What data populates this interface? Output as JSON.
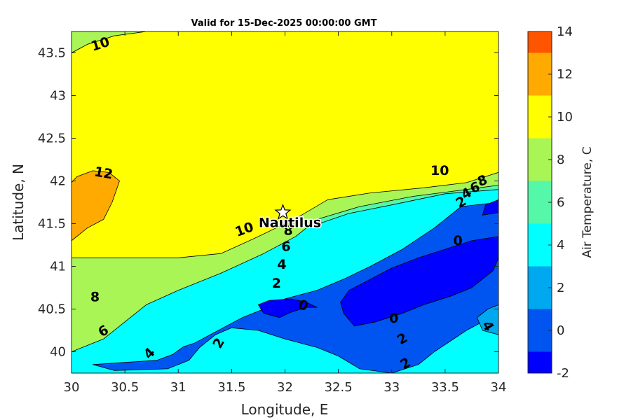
{
  "chart_data": {
    "type": "contour-map",
    "title": "Valid for 15-Dec-2025 00:00:00 GMT",
    "xlabel": "Longitude, E",
    "ylabel": "Latitude, N",
    "xlim": [
      30,
      34
    ],
    "ylim": [
      39.75,
      43.75
    ],
    "xticks": [
      30,
      30.5,
      31,
      31.5,
      32,
      32.5,
      33,
      33.5,
      34
    ],
    "xtick_labels": [
      "30",
      "30.5",
      "31",
      "31.5",
      "32",
      "32.5",
      "33",
      "33.5",
      "34"
    ],
    "yticks": [
      40,
      40.5,
      41,
      41.5,
      42,
      42.5,
      43,
      43.5
    ],
    "ytick_labels": [
      "40",
      "40.5",
      "41",
      "41.5",
      "42",
      "42.5",
      "43",
      "43.5"
    ],
    "colorbar": {
      "label": "Air Temperature, C",
      "range": [
        -2,
        14
      ],
      "ticks": [
        -2,
        0,
        2,
        4,
        6,
        8,
        10,
        12,
        14
      ],
      "tick_labels": [
        "-2",
        "0",
        "2",
        "4",
        "6",
        "8",
        "10",
        "12",
        "14"
      ],
      "levels": [
        {
          "min": -2,
          "max": -1,
          "color": "#0000ff"
        },
        {
          "min": -1,
          "max": 1,
          "color": "#0055f0"
        },
        {
          "min": 1,
          "max": 3,
          "color": "#00a8f0"
        },
        {
          "min": 3,
          "max": 5,
          "color": "#00ffff"
        },
        {
          "min": 5,
          "max": 7,
          "color": "#55f7a8"
        },
        {
          "min": 7,
          "max": 9,
          "color": "#a8f555"
        },
        {
          "min": 9,
          "max": 11,
          "color": "#ffff00"
        },
        {
          "min": 11,
          "max": 13,
          "color": "#ffaa00"
        },
        {
          "min": 13,
          "max": 14,
          "color": "#ff5500"
        }
      ]
    },
    "regions": [
      {
        "level": 2,
        "color": "#00a8f0",
        "points": [
          [
            30,
            39.75
          ],
          [
            34,
            39.75
          ],
          [
            34,
            41.92
          ],
          [
            33.5,
            41.85
          ],
          [
            33,
            41.7
          ],
          [
            32.6,
            41.63
          ],
          [
            32.2,
            41.52
          ],
          [
            31.9,
            41.32
          ],
          [
            31.6,
            41.15
          ],
          [
            31.3,
            41.0
          ],
          [
            31,
            40.85
          ],
          [
            30.5,
            40.58
          ],
          [
            30,
            40.3
          ]
        ]
      },
      {
        "level": 3,
        "color": "#00ffff",
        "points": [
          [
            30,
            39.75
          ],
          [
            34,
            39.75
          ],
          [
            34,
            41.95
          ],
          [
            33.5,
            41.88
          ],
          [
            33,
            41.75
          ],
          [
            32.6,
            41.68
          ],
          [
            32.2,
            41.57
          ],
          [
            31.95,
            41.38
          ],
          [
            31.7,
            41.22
          ],
          [
            31.4,
            41.1
          ],
          [
            31.1,
            40.98
          ],
          [
            30.7,
            40.78
          ],
          [
            30.3,
            40.55
          ],
          [
            30,
            40.45
          ]
        ]
      },
      {
        "level": 4,
        "color": "#55f7a8",
        "points": [
          [
            30,
            40.12
          ],
          [
            30.4,
            40.3
          ],
          [
            30.6,
            40.5
          ],
          [
            30.8,
            40.65
          ],
          [
            31.2,
            40.88
          ],
          [
            31.6,
            41.08
          ],
          [
            31.95,
            41.25
          ],
          [
            32.2,
            41.45
          ],
          [
            32.6,
            41.62
          ],
          [
            33,
            41.72
          ],
          [
            33.5,
            41.85
          ],
          [
            34,
            41.9
          ],
          [
            34,
            43.75
          ],
          [
            30,
            43.75
          ]
        ]
      },
      {
        "level": 5,
        "color": "#a8f555",
        "points": [
          [
            30,
            40.0
          ],
          [
            30.3,
            40.15
          ],
          [
            30.5,
            40.35
          ],
          [
            30.7,
            40.55
          ],
          [
            31,
            40.72
          ],
          [
            31.4,
            40.92
          ],
          [
            31.8,
            41.15
          ],
          [
            32.1,
            41.35
          ],
          [
            32.3,
            41.55
          ],
          [
            32.7,
            41.7
          ],
          [
            33.2,
            41.82
          ],
          [
            33.7,
            41.9
          ],
          [
            34,
            41.95
          ],
          [
            34,
            43.75
          ],
          [
            30,
            43.75
          ]
        ]
      },
      {
        "level": 6,
        "color": "#ffff00",
        "points": [
          [
            30,
            41.1
          ],
          [
            30.5,
            41.1
          ],
          [
            31,
            41.1
          ],
          [
            31.4,
            41.15
          ],
          [
            31.7,
            41.32
          ],
          [
            32.1,
            41.56
          ],
          [
            32.4,
            41.78
          ],
          [
            32.8,
            41.86
          ],
          [
            33.3,
            41.92
          ],
          [
            33.7,
            41.98
          ],
          [
            34,
            42.1
          ],
          [
            34,
            43.75
          ],
          [
            30.9,
            43.75
          ],
          [
            30.7,
            43.75
          ],
          [
            30.4,
            43.7
          ],
          [
            30.15,
            43.6
          ],
          [
            30,
            43.5
          ]
        ]
      },
      {
        "level": 5,
        "color": "#a8f555",
        "points": [
          [
            30,
            43.75
          ],
          [
            30.9,
            43.75
          ],
          [
            30.7,
            43.75
          ],
          [
            30.4,
            43.7
          ],
          [
            30.15,
            43.6
          ],
          [
            30,
            43.5
          ]
        ]
      },
      {
        "level": 7,
        "color": "#ffaa00",
        "points": [
          [
            30,
            41.3
          ],
          [
            30.15,
            41.45
          ],
          [
            30.3,
            41.55
          ],
          [
            30.38,
            41.75
          ],
          [
            30.45,
            42.0
          ],
          [
            30.35,
            42.1
          ],
          [
            30.2,
            42.12
          ],
          [
            30.05,
            42.05
          ],
          [
            30,
            41.98
          ]
        ]
      },
      {
        "level": 1,
        "color": "#0055f0",
        "points": [
          [
            30.2,
            39.85
          ],
          [
            30.8,
            39.9
          ],
          [
            30.95,
            39.97
          ],
          [
            31.05,
            40.06
          ],
          [
            31.15,
            40.1
          ],
          [
            31.3,
            40.2
          ],
          [
            31.45,
            40.3
          ],
          [
            31.6,
            40.4
          ],
          [
            31.8,
            40.5
          ],
          [
            32,
            40.62
          ],
          [
            32.3,
            40.72
          ],
          [
            32.55,
            40.85
          ],
          [
            32.8,
            41.0
          ],
          [
            33.1,
            41.2
          ],
          [
            33.4,
            41.45
          ],
          [
            33.65,
            41.7
          ],
          [
            34,
            41.75
          ],
          [
            34,
            40.45
          ],
          [
            33.7,
            40.25
          ],
          [
            33.4,
            40.0
          ],
          [
            33.25,
            39.85
          ],
          [
            33.0,
            39.75
          ],
          [
            32.7,
            39.8
          ],
          [
            32.5,
            39.95
          ],
          [
            32.3,
            40.05
          ],
          [
            32.0,
            40.15
          ],
          [
            31.75,
            40.25
          ],
          [
            31.5,
            40.28
          ],
          [
            31.35,
            40.2
          ],
          [
            31.2,
            40.05
          ],
          [
            31.1,
            39.9
          ],
          [
            30.9,
            39.8
          ],
          [
            30.4,
            39.78
          ],
          [
            30.2,
            39.85
          ]
        ]
      },
      {
        "level": 0,
        "color": "#0000ff",
        "points": [
          [
            31.95,
            40.4
          ],
          [
            32.05,
            40.46
          ],
          [
            32.2,
            40.52
          ],
          [
            32.3,
            40.52
          ],
          [
            32.2,
            40.58
          ],
          [
            32.05,
            40.62
          ],
          [
            31.85,
            40.6
          ],
          [
            31.75,
            40.55
          ],
          [
            31.8,
            40.45
          ]
        ]
      },
      {
        "level": 0,
        "color": "#0000ff",
        "points": [
          [
            32.55,
            40.45
          ],
          [
            32.65,
            40.3
          ],
          [
            32.85,
            40.35
          ],
          [
            33.1,
            40.45
          ],
          [
            33.3,
            40.55
          ],
          [
            33.55,
            40.65
          ],
          [
            33.75,
            40.75
          ],
          [
            33.95,
            40.95
          ],
          [
            34,
            41.1
          ],
          [
            34,
            41.35
          ],
          [
            33.75,
            41.3
          ],
          [
            33.5,
            41.2
          ],
          [
            33.25,
            41.1
          ],
          [
            33.0,
            40.98
          ],
          [
            32.8,
            40.85
          ],
          [
            32.6,
            40.72
          ],
          [
            32.52,
            40.58
          ]
        ]
      },
      {
        "level": 0,
        "color": "#0000ff",
        "points": [
          [
            33.85,
            41.6
          ],
          [
            34,
            41.63
          ],
          [
            34,
            41.78
          ],
          [
            33.88,
            41.72
          ]
        ]
      },
      {
        "level": 2,
        "color": "#00a8f0",
        "points": [
          [
            33.85,
            40.25
          ],
          [
            34,
            40.2
          ],
          [
            34,
            40.55
          ],
          [
            33.9,
            40.5
          ],
          [
            33.8,
            40.4
          ]
        ]
      }
    ],
    "contour_labels": [
      {
        "text": "10",
        "x": 30.27,
        "y": 43.6,
        "angle": -18
      },
      {
        "text": "12",
        "x": 30.3,
        "y": 42.09,
        "angle": 10
      },
      {
        "text": "10",
        "x": 33.45,
        "y": 42.12,
        "angle": 0
      },
      {
        "text": "8",
        "x": 33.85,
        "y": 42.0,
        "angle": -20
      },
      {
        "text": "6",
        "x": 33.78,
        "y": 41.92,
        "angle": -20
      },
      {
        "text": "4",
        "x": 33.7,
        "y": 41.85,
        "angle": -30
      },
      {
        "text": "2",
        "x": 33.65,
        "y": 41.75,
        "angle": -30
      },
      {
        "text": "0",
        "x": 33.62,
        "y": 41.3,
        "angle": 0
      },
      {
        "text": "10",
        "x": 31.62,
        "y": 41.43,
        "angle": -20
      },
      {
        "text": "8",
        "x": 32.03,
        "y": 41.42,
        "angle": 0
      },
      {
        "text": "6",
        "x": 32.01,
        "y": 41.23,
        "angle": 0
      },
      {
        "text": "4",
        "x": 31.97,
        "y": 41.02,
        "angle": 0
      },
      {
        "text": "2",
        "x": 31.92,
        "y": 40.8,
        "angle": 0
      },
      {
        "text": "0",
        "x": 32.17,
        "y": 40.54,
        "angle": 20
      },
      {
        "text": "8",
        "x": 30.22,
        "y": 40.64,
        "angle": 0
      },
      {
        "text": "6",
        "x": 30.3,
        "y": 40.24,
        "angle": -30
      },
      {
        "text": "4",
        "x": 30.73,
        "y": 39.98,
        "angle": -45
      },
      {
        "text": "2",
        "x": 31.38,
        "y": 40.1,
        "angle": -60
      },
      {
        "text": "0",
        "x": 33.02,
        "y": 40.39,
        "angle": 0
      },
      {
        "text": "2",
        "x": 33.1,
        "y": 40.15,
        "angle": -30
      },
      {
        "text": "2",
        "x": 33.13,
        "y": 39.86,
        "angle": -30
      },
      {
        "text": "4",
        "x": 33.9,
        "y": 40.3,
        "angle": 60
      }
    ],
    "marker": {
      "name": "Nautilus",
      "lon": 31.98,
      "lat": 41.63,
      "symbol": "star"
    }
  }
}
